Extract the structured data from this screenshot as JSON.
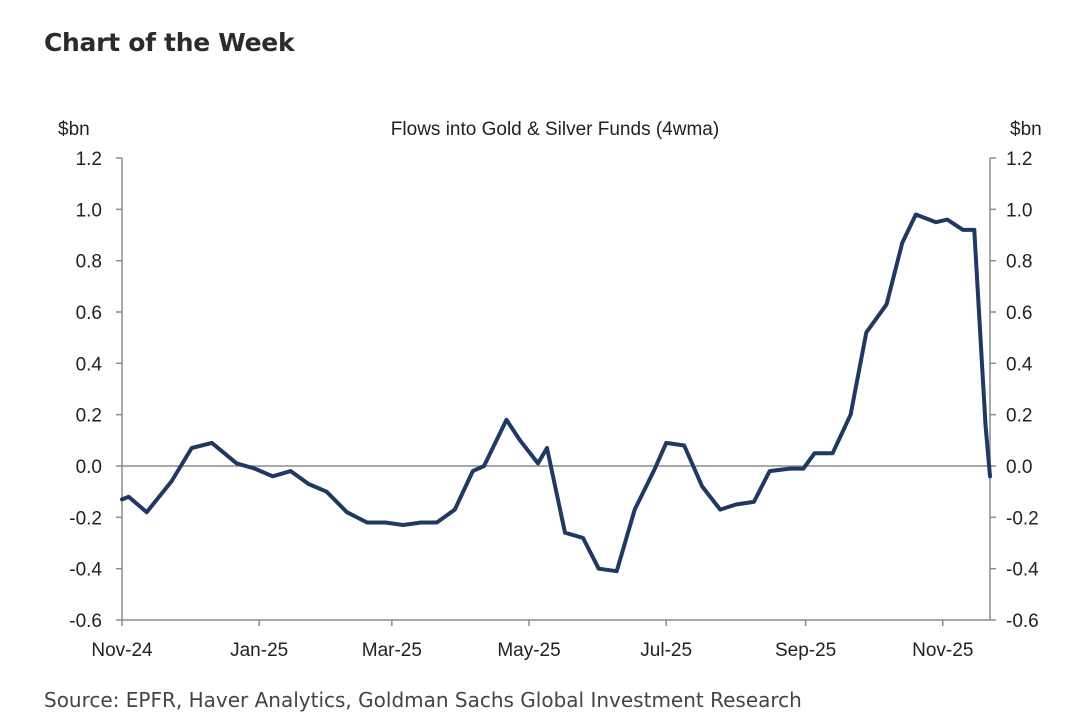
{
  "page": {
    "heading": "Chart of the Week",
    "source": "Source: EPFR, Haver Analytics, Goldman Sachs Global Investment Research"
  },
  "chart_data": {
    "type": "line",
    "title": "Flows into Gold & Silver Funds (4wma)",
    "ylabel_left": "$bn",
    "ylabel_right": "$bn",
    "ylim": [
      -0.6,
      1.2
    ],
    "yticks": [
      "1.2",
      "1.0",
      "0.8",
      "0.6",
      "0.4",
      "0.2",
      "0.0",
      "-0.2",
      "-0.4",
      "-0.6"
    ],
    "xlim": [
      "2024-11-01",
      "2025-11-22"
    ],
    "xtick_labels": [
      "Nov-24",
      "Jan-25",
      "Mar-25",
      "May-25",
      "Jul-25",
      "Sep-25",
      "Nov-25"
    ],
    "xtick_dates": [
      "2024-11-01",
      "2025-01-01",
      "2025-03-01",
      "2025-05-01",
      "2025-07-01",
      "2025-09-01",
      "2025-11-01"
    ],
    "grid": false,
    "zero_line": true,
    "line_color": "#1f3864",
    "series": [
      {
        "x": [
          "2024-11-01",
          "2024-11-04",
          "2024-11-12",
          "2024-11-23",
          "2024-12-02",
          "2024-12-11",
          "2024-12-22",
          "2024-12-30",
          "2025-01-07",
          "2025-01-15",
          "2025-01-23",
          "2025-01-31",
          "2025-02-09",
          "2025-02-18",
          "2025-02-26",
          "2025-03-06",
          "2025-03-14",
          "2025-03-21",
          "2025-03-29",
          "2025-04-06",
          "2025-04-11",
          "2025-04-21",
          "2025-04-27",
          "2025-05-05",
          "2025-05-09",
          "2025-05-17",
          "2025-05-25",
          "2025-06-01",
          "2025-06-09",
          "2025-06-17",
          "2025-06-26",
          "2025-07-01",
          "2025-07-09",
          "2025-07-17",
          "2025-07-25",
          "2025-08-01",
          "2025-08-09",
          "2025-08-16",
          "2025-08-25",
          "2025-08-31",
          "2025-09-05",
          "2025-09-13",
          "2025-09-21",
          "2025-09-28",
          "2025-10-07",
          "2025-10-14",
          "2025-10-20",
          "2025-10-29",
          "2025-11-03",
          "2025-11-10",
          "2025-11-15"
        ],
        "values": [
          -0.13,
          -0.12,
          -0.18,
          -0.06,
          0.07,
          0.09,
          0.01,
          -0.01,
          -0.04,
          -0.02,
          -0.07,
          -0.1,
          -0.18,
          -0.22,
          -0.22,
          -0.23,
          -0.22,
          -0.22,
          -0.17,
          -0.02,
          0.0,
          0.18,
          0.1,
          0.01,
          0.07,
          -0.26,
          -0.28,
          -0.4,
          -0.41,
          -0.17,
          -0.01,
          0.09,
          0.08,
          -0.08,
          -0.17,
          -0.15,
          -0.14,
          -0.02,
          -0.01,
          -0.01,
          0.05,
          0.05,
          0.2,
          0.52,
          0.63,
          0.87,
          0.98,
          0.95,
          0.96,
          0.92,
          0.92
        ]
      },
      {
        "x": [
          "2025-11-20",
          "2025-11-22"
        ],
        "values": [
          0.16,
          -0.04
        ]
      }
    ]
  }
}
